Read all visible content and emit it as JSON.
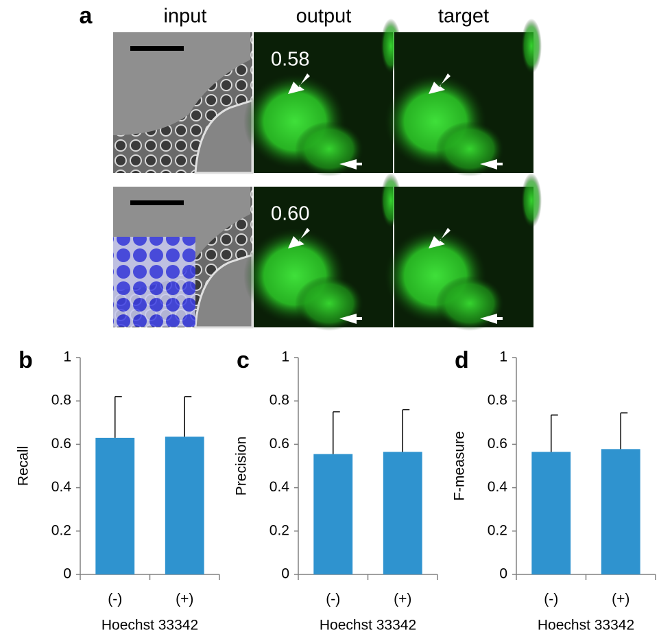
{
  "panel_a": {
    "label": "a",
    "columns": [
      "input",
      "output",
      "target"
    ],
    "scores": [
      "0.58",
      "0.60"
    ]
  },
  "chart_data": [
    {
      "type": "bar",
      "panel_label": "b",
      "y_label": "Recall",
      "x_label": "Hoechst 33342",
      "categories": [
        "(-)",
        "(+)"
      ],
      "values": [
        0.63,
        0.635
      ],
      "errors": [
        0.19,
        0.185
      ],
      "color": "#2f93cf",
      "ylim": [
        0,
        1
      ],
      "yticks": [
        0,
        0.2,
        0.4,
        0.6,
        0.8,
        1
      ]
    },
    {
      "type": "bar",
      "panel_label": "c",
      "y_label": "Precision",
      "x_label": "Hoechst 33342",
      "categories": [
        "(-)",
        "(+)"
      ],
      "values": [
        0.555,
        0.565
      ],
      "errors": [
        0.195,
        0.195
      ],
      "color": "#2f93cf",
      "ylim": [
        0,
        1
      ],
      "yticks": [
        0,
        0.2,
        0.4,
        0.6,
        0.8,
        1
      ]
    },
    {
      "type": "bar",
      "panel_label": "d",
      "y_label": "F-measure",
      "x_label": "Hoechst 33342",
      "categories": [
        "(-)",
        "(+)"
      ],
      "values": [
        0.565,
        0.578
      ],
      "errors": [
        0.17,
        0.167
      ],
      "color": "#2f93cf",
      "ylim": [
        0,
        1
      ],
      "yticks": [
        0,
        0.2,
        0.4,
        0.6,
        0.8,
        1
      ]
    }
  ]
}
